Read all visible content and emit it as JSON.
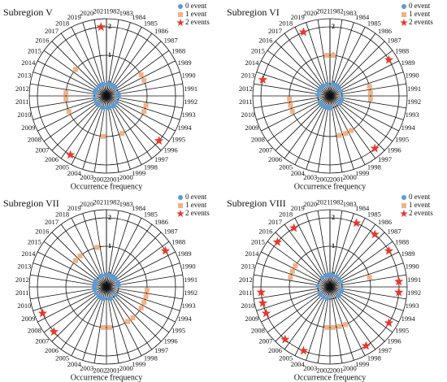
{
  "chart_data": [
    {
      "type": "polar",
      "title": "Subregion V",
      "xlabel": "Occurrence frequency",
      "categories": [
        "1982",
        "1983",
        "1984",
        "1985",
        "1986",
        "1987",
        "1988",
        "1989",
        "1990",
        "1991",
        "1992",
        "1993",
        "1994",
        "1995",
        "1996",
        "1997",
        "1998",
        "1999",
        "2000",
        "2001",
        "2002",
        "2003",
        "2004",
        "2005",
        "2006",
        "2007",
        "2008",
        "2009",
        "2010",
        "2011",
        "2012",
        "2013",
        "2014",
        "2015",
        "2016",
        "2017",
        "2018",
        "2019",
        "2020",
        "2021"
      ],
      "values": [
        0,
        0,
        0,
        0,
        0,
        0,
        1,
        1,
        0,
        0,
        0,
        1,
        1,
        0,
        2,
        0,
        0,
        1,
        0,
        0,
        1,
        0,
        0,
        2,
        0,
        0,
        0,
        1,
        0,
        1,
        1,
        0,
        0,
        0,
        1,
        0,
        0,
        0,
        0,
        2
      ],
      "ylim": [
        0,
        2
      ],
      "yticks": [
        0,
        1,
        2
      ],
      "legend": [
        "0 event",
        "1 event",
        "2 events"
      ],
      "colors": [
        "#5b9bd5",
        "#f4b183",
        "#e8382c"
      ]
    },
    {
      "type": "polar",
      "title": "Subregion VI",
      "xlabel": "Occurrence frequency",
      "categories": [
        "1982",
        "1983",
        "1984",
        "1985",
        "1986",
        "1987",
        "1988",
        "1989",
        "1990",
        "1991",
        "1992",
        "1993",
        "1994",
        "1995",
        "1996",
        "1997",
        "1998",
        "1999",
        "2000",
        "2001",
        "2002",
        "2003",
        "2004",
        "2005",
        "2006",
        "2007",
        "2008",
        "2009",
        "2010",
        "2011",
        "2012",
        "2013",
        "2014",
        "2015",
        "2016",
        "2017",
        "2018",
        "2019",
        "2020",
        "2021"
      ],
      "values": [
        1,
        0,
        0,
        0,
        0,
        0,
        2,
        0,
        1,
        1,
        1,
        0,
        0,
        0,
        0,
        2,
        1,
        1,
        1,
        0,
        0,
        0,
        0,
        0,
        0,
        0,
        0,
        1,
        1,
        1,
        0,
        2,
        0,
        0,
        0,
        0,
        0,
        2,
        0,
        1
      ],
      "ylim": [
        0,
        2
      ],
      "yticks": [
        0,
        1,
        2
      ],
      "legend": [
        "0 event",
        "1 event",
        "2 events"
      ],
      "colors": [
        "#5b9bd5",
        "#f4b183",
        "#e8382c"
      ]
    },
    {
      "type": "polar",
      "title": "Subregion VII",
      "xlabel": "Occurrence frequency",
      "categories": [
        "1982",
        "1983",
        "1984",
        "1985",
        "1986",
        "1987",
        "1988",
        "1989",
        "1990",
        "1991",
        "1992",
        "1993",
        "1994",
        "1995",
        "1996",
        "1997",
        "1998",
        "1999",
        "2000",
        "2001",
        "2002",
        "2003",
        "2004",
        "2005",
        "2006",
        "2007",
        "2008",
        "2009",
        "2010",
        "2011",
        "2012",
        "2013",
        "2014",
        "2015",
        "2016",
        "2017",
        "2018",
        "2019",
        "2020",
        "2021"
      ],
      "values": [
        0,
        0,
        0,
        0,
        0,
        0,
        2,
        0,
        0,
        0,
        1,
        1,
        1,
        1,
        0,
        1,
        1,
        0,
        0,
        1,
        1,
        0,
        0,
        0,
        0,
        2,
        0,
        2,
        0,
        0,
        0,
        0,
        0,
        0,
        1,
        1,
        0,
        0,
        1,
        0
      ],
      "ylim": [
        0,
        2
      ],
      "yticks": [
        0,
        1,
        2
      ],
      "legend": [
        "0 event",
        "1 event",
        "2 events"
      ],
      "colors": [
        "#5b9bd5",
        "#f4b183",
        "#e8382c"
      ]
    },
    {
      "type": "polar",
      "title": "Subregion VIII",
      "xlabel": "Occurrence frequency",
      "categories": [
        "1982",
        "1983",
        "1984",
        "1985",
        "1986",
        "1987",
        "1988",
        "1989",
        "1990",
        "1991",
        "1992",
        "1993",
        "1994",
        "1995",
        "1996",
        "1997",
        "1998",
        "1999",
        "2000",
        "2001",
        "2002",
        "2003",
        "2004",
        "2005",
        "2006",
        "2007",
        "2008",
        "2009",
        "2010",
        "2011",
        "2012",
        "2013",
        "2014",
        "2015",
        "2016",
        "2017",
        "2018",
        "2019",
        "2020",
        "2021"
      ],
      "values": [
        0,
        0,
        2,
        0,
        2,
        0,
        2,
        0,
        1,
        2,
        2,
        0,
        0,
        2,
        0,
        0,
        2,
        1,
        1,
        1,
        1,
        0,
        2,
        0,
        2,
        0,
        0,
        2,
        2,
        2,
        0,
        1,
        1,
        1,
        2,
        0,
        2,
        0,
        0,
        0
      ],
      "ylim": [
        0,
        2
      ],
      "yticks": [
        0,
        1,
        2
      ],
      "legend": [
        "0 event",
        "1 event",
        "2 events"
      ],
      "colors": [
        "#5b9bd5",
        "#f4b183",
        "#e8382c"
      ]
    }
  ]
}
